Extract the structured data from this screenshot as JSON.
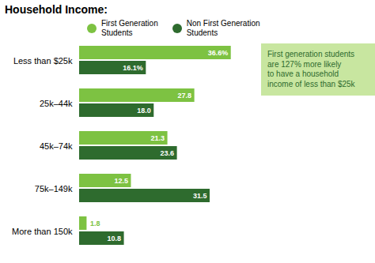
{
  "chart_data": {
    "type": "bar",
    "orientation": "horizontal",
    "title": "Household Income:",
    "categories": [
      "Less than $25k",
      "25k–44k",
      "45k–74k",
      "75k–149k",
      "More than 150k"
    ],
    "series": [
      {
        "name": "First Generation\nStudents",
        "color": "#7DC242",
        "values": [
          36.6,
          27.8,
          21.3,
          12.5,
          1.8
        ],
        "value_labels": [
          "36.6%",
          "27.8",
          "21.3",
          "12.5",
          "1.8"
        ]
      },
      {
        "name": "Non First Generation\nStudents",
        "color": "#2E6B2E",
        "values": [
          16.1,
          18.0,
          23.6,
          31.5,
          10.8
        ],
        "value_labels": [
          "16.1%",
          "18.0",
          "23.6",
          "31.5",
          "10.8"
        ]
      }
    ],
    "xlim": [
      0,
      42
    ],
    "data_labels": true,
    "tick_labels": "y",
    "grid": false,
    "legend": "top",
    "annotation": "First generation students\nare 127% more likely\nto have a household\nincome of less than $25k"
  }
}
